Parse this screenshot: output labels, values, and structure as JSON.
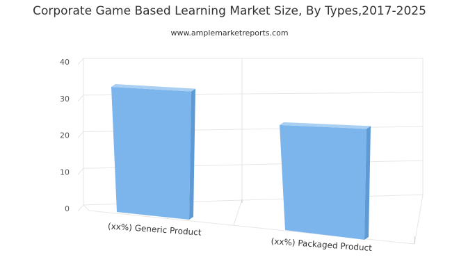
{
  "chart_data": {
    "type": "bar",
    "title": "Corporate Game Based Learning Market Size, By Types,2017-2025",
    "subtitle": "www.amplemarketreports.com",
    "categories": [
      "(xx%) Generic Product",
      "(xx%) Packaged Product"
    ],
    "values": [
      36,
      25
    ],
    "ylim": [
      0,
      40
    ],
    "yticks": [
      0,
      10,
      20,
      30,
      40
    ],
    "xlabel": "",
    "ylabel": "",
    "grid": true,
    "legend": "none",
    "colors": {
      "bar_front": "#7cb5ec",
      "bar_side": "#5d9ad6",
      "bar_top": "#a9cff3",
      "grid": "#e6e6e6"
    }
  }
}
